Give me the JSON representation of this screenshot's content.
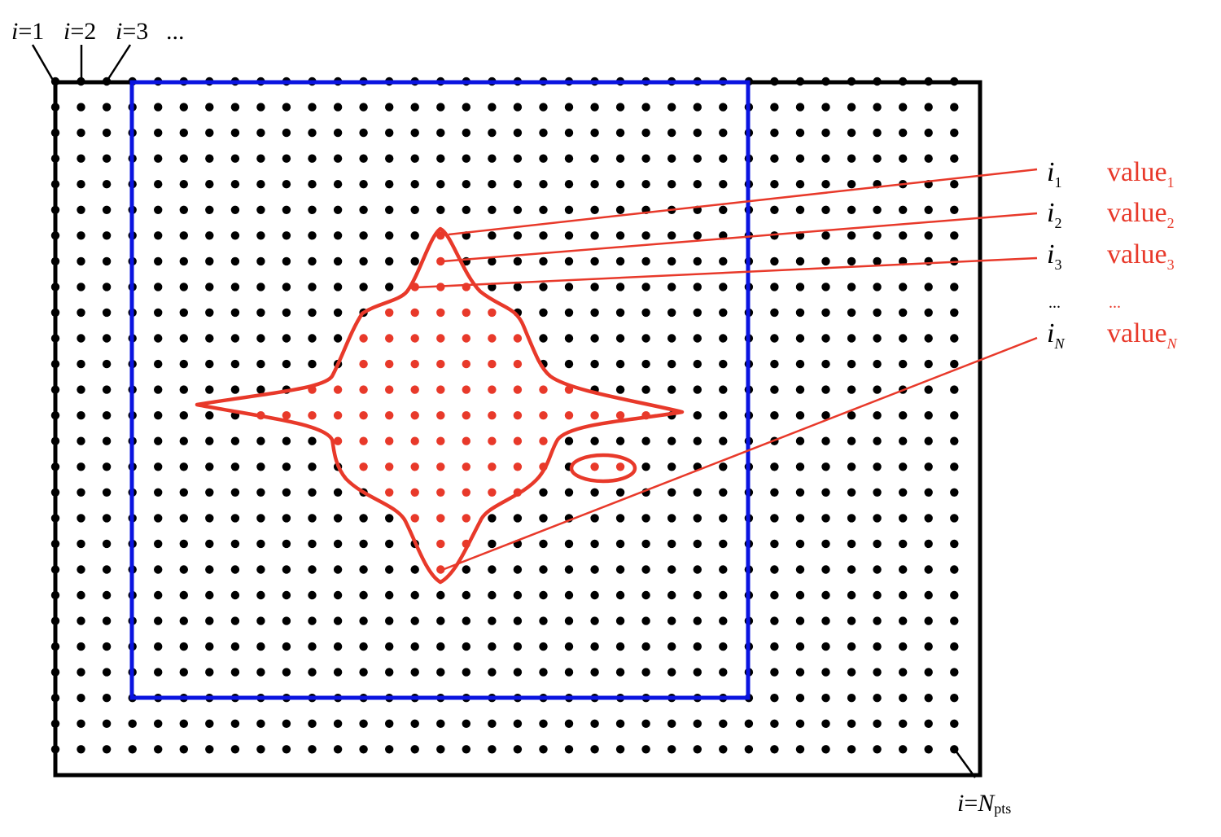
{
  "colors": {
    "grid_point": "#000000",
    "domain_border": "#000000",
    "subregion_border": "#0a14e0",
    "selection": "#e8392a",
    "label_text": "#000000",
    "value_text": "#e8392a"
  },
  "grid": {
    "columns": 36,
    "rows": 27
  },
  "top_labels": {
    "first": {
      "var": "i",
      "eq": "=1"
    },
    "second": {
      "var": "i",
      "eq": "=2"
    },
    "third": {
      "var": "i",
      "eq": "=3"
    },
    "more": "..."
  },
  "bottom_label": {
    "var": "i",
    "eq": "=",
    "n": "N",
    "sub": "pts"
  },
  "index_list": [
    {
      "var": "i",
      "sub": "1",
      "value": "value",
      "value_sub": "1"
    },
    {
      "var": "i",
      "sub": "2",
      "value": "value",
      "value_sub": "2"
    },
    {
      "var": "i",
      "sub": "3",
      "value": "value",
      "value_sub": "3"
    },
    {
      "var": "i",
      "sub": "N",
      "value": "value",
      "value_sub": "N"
    }
  ],
  "ellipsis": {
    "index": "...",
    "value": "..."
  }
}
